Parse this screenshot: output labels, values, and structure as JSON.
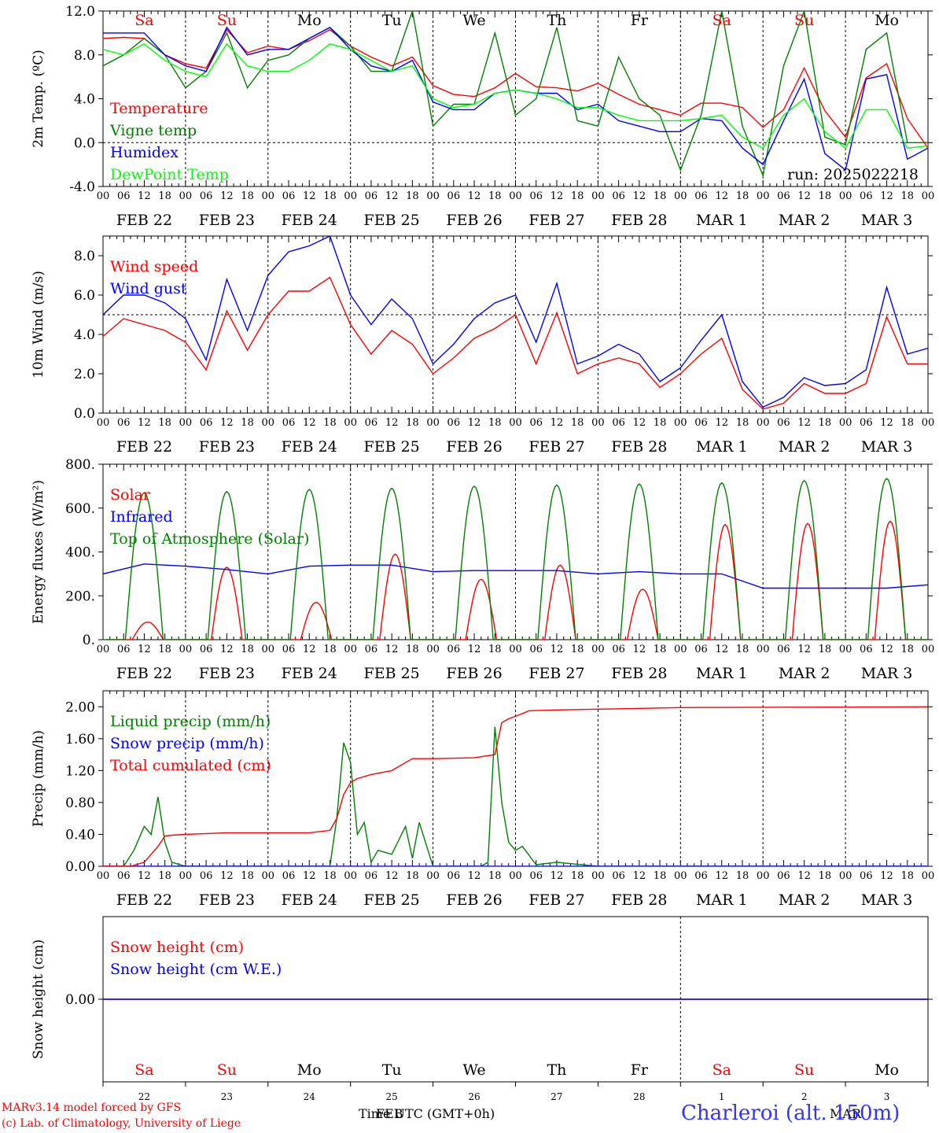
{
  "meta": {
    "footer_model": "MARv3.14 model forced by GFS",
    "footer_lab": "(c) Lab. of Climatology, University of Liege",
    "time_label": "Time UTC (GMT+0h)",
    "month_feb": "FEB",
    "month_mar": "MAR",
    "location": "Charleroi (alt. 150m)",
    "run": "run: 2025022218"
  },
  "days": {
    "labels": [
      "FEB 22",
      "FEB 23",
      "FEB 24",
      "FEB 25",
      "FEB 26",
      "FEB 27",
      "FEB 28",
      "MAR  1",
      "MAR  2",
      "MAR  3"
    ],
    "weekdays": [
      "Sa",
      "Su",
      "Mo",
      "Tu",
      "We",
      "Th",
      "Fr",
      "Sa",
      "Su",
      "Mo"
    ],
    "day_numbers": [
      "22",
      "23",
      "24",
      "25",
      "26",
      "27",
      "28",
      "1",
      "2",
      "3"
    ],
    "weekend_color": "#ff0000",
    "weekday_color": "#000000",
    "hour_ticks": [
      "00",
      "06",
      "12",
      "18"
    ],
    "end_tick": "00"
  },
  "chart_data": [
    {
      "type": "line",
      "ylabel": "2m Temp. (ºC)",
      "ylim": [
        -4,
        12
      ],
      "yticks": [
        "-4.0",
        "0.0",
        "4.0",
        "8.0",
        "12.0"
      ],
      "ref_line": 0,
      "x_unit": "hours since FEB 22 00 UTC",
      "series": [
        {
          "name": "Temperature",
          "color": "#ff0000",
          "x": [
            0,
            6,
            12,
            18,
            24,
            30,
            36,
            42,
            48,
            54,
            60,
            66,
            72,
            78,
            84,
            90,
            96,
            102,
            108,
            114,
            120,
            126,
            132,
            138,
            144,
            150,
            156,
            162,
            168,
            174,
            180,
            186,
            192,
            198,
            204,
            210,
            216,
            222,
            228,
            234,
            240
          ],
          "values": [
            9.5,
            9.6,
            9.5,
            8.0,
            7.2,
            6.8,
            10.3,
            8.2,
            8.8,
            8.5,
            9.3,
            10.3,
            8.8,
            7.8,
            7.0,
            7.8,
            5.2,
            4.4,
            4.2,
            5.0,
            6.3,
            5.1,
            5.0,
            4.7,
            5.4,
            4.4,
            3.5,
            3.0,
            2.5,
            3.6,
            3.6,
            3.2,
            1.4,
            3.0,
            6.8,
            2.9,
            0.5,
            5.9,
            7.2,
            2.2,
            -0.5
          ]
        },
        {
          "name": "Vigne temp",
          "color": "#008000",
          "x": [
            0,
            6,
            12,
            18,
            24,
            30,
            36,
            42,
            48,
            54,
            60,
            66,
            72,
            78,
            84,
            90,
            96,
            102,
            108,
            114,
            120,
            126,
            132,
            138,
            144,
            150,
            156,
            162,
            168,
            174,
            180,
            186,
            192,
            198,
            204,
            210,
            216,
            222,
            228,
            234,
            240
          ],
          "values": [
            7.0,
            8.0,
            9.5,
            8.0,
            5.0,
            6.5,
            10.0,
            5.0,
            7.5,
            8.0,
            9.5,
            10.5,
            8.8,
            6.5,
            6.5,
            12.0,
            1.5,
            3.5,
            3.5,
            10.0,
            2.5,
            4.0,
            10.5,
            2.0,
            1.5,
            7.8,
            4.0,
            2.5,
            -2.5,
            2.5,
            12.0,
            1.5,
            -3.0,
            7.0,
            12.0,
            0.5,
            -0.2,
            8.5,
            10.0,
            0.0,
            0.0
          ]
        },
        {
          "name": "Humidex",
          "color": "#0000ff",
          "x": [
            0,
            6,
            12,
            18,
            24,
            30,
            36,
            42,
            48,
            54,
            60,
            66,
            72,
            78,
            84,
            90,
            96,
            102,
            108,
            114,
            120,
            126,
            132,
            138,
            144,
            150,
            156,
            162,
            168,
            174,
            180,
            186,
            192,
            198,
            204,
            210,
            216,
            222,
            228,
            234,
            240
          ],
          "values": [
            10.0,
            10.0,
            10.0,
            8.0,
            7.0,
            6.5,
            10.5,
            8.0,
            8.5,
            8.5,
            9.5,
            10.5,
            8.5,
            7.0,
            6.5,
            7.5,
            3.7,
            3.0,
            3.0,
            4.5,
            4.8,
            4.5,
            4.5,
            3.0,
            3.5,
            2.0,
            1.5,
            1.0,
            1.0,
            2.2,
            2.0,
            -0.5,
            -2.0,
            2.0,
            5.8,
            -1.0,
            -2.5,
            5.8,
            6.2,
            -1.5,
            -0.5
          ]
        },
        {
          "name": "DewPoint Temp",
          "color": "#00ff00",
          "x": [
            0,
            6,
            12,
            18,
            24,
            30,
            36,
            42,
            48,
            54,
            60,
            66,
            72,
            78,
            84,
            90,
            96,
            102,
            108,
            114,
            120,
            126,
            132,
            138,
            144,
            150,
            156,
            162,
            168,
            174,
            180,
            186,
            192,
            198,
            204,
            210,
            216,
            222,
            228,
            234,
            240
          ],
          "values": [
            8.5,
            8.0,
            9.0,
            7.5,
            6.5,
            6.0,
            9.0,
            7.0,
            6.5,
            6.5,
            7.5,
            9.0,
            8.5,
            7.5,
            6.5,
            7.0,
            4.0,
            3.2,
            3.5,
            4.5,
            4.8,
            4.5,
            4.0,
            3.2,
            3.2,
            2.5,
            2.0,
            2.0,
            2.0,
            2.2,
            2.5,
            0.5,
            -0.5,
            2.5,
            4.0,
            1.0,
            -0.5,
            3.0,
            3.0,
            -0.5,
            -0.3
          ]
        }
      ]
    },
    {
      "type": "line",
      "ylabel": "10m Wind (m/s)",
      "ylim": [
        0,
        9
      ],
      "yticks": [
        "0.0",
        "2.0",
        "4.0",
        "6.0",
        "8.0"
      ],
      "ref_line": 5,
      "x_unit": "hours since FEB 22 00 UTC",
      "series": [
        {
          "name": "Wind speed",
          "color": "#ff0000",
          "x": [
            0,
            6,
            12,
            18,
            24,
            30,
            36,
            42,
            48,
            54,
            60,
            66,
            72,
            78,
            84,
            90,
            96,
            102,
            108,
            114,
            120,
            126,
            132,
            138,
            144,
            150,
            156,
            162,
            168,
            174,
            180,
            186,
            192,
            198,
            204,
            210,
            216,
            222,
            228,
            234,
            240
          ],
          "values": [
            3.9,
            4.8,
            4.5,
            4.2,
            3.6,
            2.2,
            5.2,
            3.2,
            5.0,
            6.2,
            6.2,
            6.9,
            4.5,
            3.0,
            4.2,
            3.5,
            2.0,
            2.8,
            3.8,
            4.3,
            5.0,
            2.5,
            5.1,
            2.0,
            2.5,
            2.8,
            2.5,
            1.3,
            2.0,
            3.0,
            3.8,
            1.2,
            0.2,
            0.5,
            1.5,
            1.0,
            1.0,
            1.5,
            4.9,
            2.5,
            2.5
          ]
        },
        {
          "name": "Wind gust",
          "color": "#0000ff",
          "x": [
            0,
            6,
            12,
            18,
            24,
            30,
            36,
            42,
            48,
            54,
            60,
            66,
            72,
            78,
            84,
            90,
            96,
            102,
            108,
            114,
            120,
            126,
            132,
            138,
            144,
            150,
            156,
            162,
            168,
            174,
            180,
            186,
            192,
            198,
            204,
            210,
            216,
            222,
            228,
            234,
            240
          ],
          "values": [
            5.0,
            6.0,
            6.0,
            5.6,
            4.8,
            2.7,
            6.8,
            4.2,
            7.0,
            8.2,
            8.5,
            9.0,
            6.0,
            4.5,
            5.8,
            4.8,
            2.5,
            3.5,
            4.8,
            5.6,
            6.0,
            3.6,
            6.6,
            2.5,
            2.9,
            3.5,
            3.0,
            1.6,
            2.3,
            3.7,
            5.0,
            1.6,
            0.3,
            0.8,
            1.8,
            1.4,
            1.5,
            2.2,
            6.4,
            3.0,
            3.3
          ]
        }
      ]
    },
    {
      "type": "line",
      "ylabel": "Energy fluxes (W/m²)",
      "ylim": [
        0,
        800
      ],
      "yticks": [
        "0.",
        "200.",
        "400.",
        "600.",
        "800."
      ],
      "x_unit": "hours since FEB 22 00 UTC",
      "series": [
        {
          "name": "Solar",
          "color": "#ff0000",
          "peaks_hour_x": [
            13,
            36,
            62,
            85,
            110,
            133,
            157,
            181,
            205,
            229
          ],
          "peak_values": [
            80,
            330,
            170,
            390,
            275,
            340,
            230,
            525,
            530,
            540
          ]
        },
        {
          "name": "Infrared",
          "color": "#0000ff",
          "x": [
            0,
            12,
            24,
            36,
            48,
            60,
            72,
            84,
            96,
            108,
            120,
            132,
            144,
            156,
            168,
            180,
            192,
            204,
            216,
            228,
            240
          ],
          "values": [
            300,
            345,
            335,
            320,
            300,
            335,
            340,
            340,
            310,
            315,
            315,
            315,
            300,
            310,
            300,
            300,
            235,
            235,
            235,
            235,
            250
          ]
        },
        {
          "name": "Top of Atmosphere (Solar)",
          "color": "#008000",
          "peaks_hour_x": [
            12,
            36,
            60,
            84,
            108,
            132,
            156,
            180,
            204,
            228
          ],
          "peak_values": [
            670,
            675,
            685,
            690,
            700,
            705,
            710,
            715,
            725,
            735
          ]
        }
      ]
    },
    {
      "type": "line",
      "ylabel": "Precip (mm/h)",
      "ylim": [
        0,
        2.2
      ],
      "yticks": [
        "0.00",
        "0.40",
        "0.80",
        "1.20",
        "1.60",
        "2.00"
      ],
      "x_unit": "hours since FEB 22 00 UTC",
      "series": [
        {
          "name": "Liquid precip (mm/h)",
          "color": "#008000",
          "x": [
            0,
            6,
            9,
            12,
            14,
            16,
            18,
            20,
            24,
            66,
            68,
            70,
            72,
            74,
            76,
            78,
            80,
            84,
            88,
            90,
            92,
            96,
            110,
            112,
            114,
            116,
            118,
            120,
            122,
            126,
            132,
            144,
            240
          ],
          "values": [
            0,
            0,
            0.2,
            0.5,
            0.4,
            0.87,
            0.3,
            0.05,
            0,
            0,
            0.6,
            1.55,
            1.3,
            0.4,
            0.55,
            0.05,
            0.2,
            0.15,
            0.5,
            0.1,
            0.55,
            0,
            0,
            0.05,
            1.75,
            0.8,
            0.3,
            0.2,
            0.25,
            0.02,
            0.05,
            0,
            0
          ]
        },
        {
          "name": "Snow precip (mm/h)",
          "color": "#0000ff",
          "x": [
            0,
            240
          ],
          "values": [
            0,
            0
          ]
        },
        {
          "name": "Total cumulated (cm)",
          "color": "#ff0000",
          "x": [
            0,
            8,
            12,
            16,
            18,
            20,
            24,
            36,
            48,
            60,
            66,
            68,
            70,
            72,
            74,
            78,
            84,
            88,
            90,
            96,
            108,
            114,
            116,
            118,
            120,
            124,
            132,
            144,
            168,
            240
          ],
          "values": [
            0,
            0,
            0.05,
            0.25,
            0.38,
            0.39,
            0.4,
            0.42,
            0.42,
            0.42,
            0.45,
            0.6,
            0.9,
            1.05,
            1.1,
            1.15,
            1.2,
            1.3,
            1.35,
            1.35,
            1.36,
            1.4,
            1.8,
            1.85,
            1.88,
            1.95,
            1.96,
            1.97,
            1.99,
            2.0
          ]
        }
      ]
    },
    {
      "type": "line",
      "ylabel": "Snow height (cm)",
      "yticks": [
        "0.00"
      ],
      "x_unit": "hours since FEB 22 00 UTC",
      "series": [
        {
          "name": "Snow height (cm)",
          "color": "#ff0000",
          "x": [
            0,
            240
          ],
          "values": [
            0,
            0
          ]
        },
        {
          "name": "Snow height (cm W.E.)",
          "color": "#0000ff",
          "x": [
            0,
            240
          ],
          "values": [
            0,
            0
          ]
        }
      ]
    }
  ]
}
